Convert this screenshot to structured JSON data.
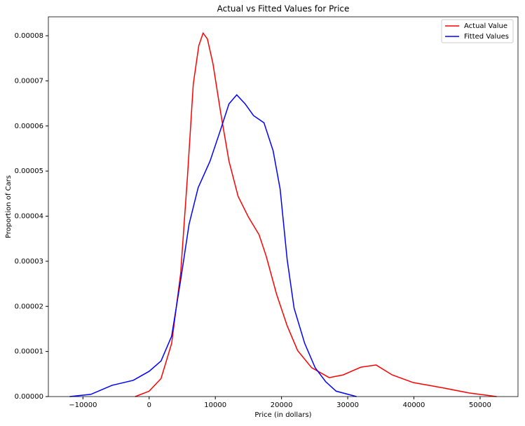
{
  "chart_data": {
    "type": "line",
    "title": "Actual vs Fitted Values for Price",
    "x_label": "Price (in dollars)",
    "y_label": "Proportion of Cars",
    "xlim": [
      -15225,
      55725
    ],
    "xticks": [
      {
        "value": -10000,
        "label": "−10000"
      },
      0,
      10000,
      20000,
      30000,
      40000,
      50000
    ],
    "ylim": [
      0,
      8.42e-05
    ],
    "yticks": [
      {
        "value": 0,
        "label": "0.00000"
      },
      1e-05,
      2e-05,
      3e-05,
      4e-05,
      5e-05,
      6e-05,
      7e-05,
      8e-05
    ],
    "legend": "upper right",
    "series": [
      {
        "name": "Actual Value",
        "color": "#ff0000",
        "x": [
          -2100,
          0,
          1800,
          3400,
          4760,
          5800,
          6670,
          7500,
          8150,
          8800,
          9630,
          10800,
          12060,
          13440,
          15000,
          16600,
          17670,
          19250,
          20850,
          22430,
          24550,
          27200,
          29300,
          31960,
          34290,
          36720,
          39900,
          44130,
          48360,
          52500
        ],
        "values": [
          0,
          1.2e-06,
          4e-06,
          1.18e-05,
          2.73e-05,
          4.9e-05,
          6.93e-05,
          7.78e-05,
          8.06e-05,
          7.93e-05,
          7.39e-05,
          6.3e-05,
          5.22e-05,
          4.44e-05,
          3.98e-05,
          3.59e-05,
          3.12e-05,
          2.27e-05,
          1.57e-05,
          1.02e-05,
          6.4e-06,
          4.2e-06,
          4.8e-06,
          6.5e-06,
          7e-06,
          4.8e-06,
          3.1e-06,
          2e-06,
          8e-07,
          0
        ]
      },
      {
        "name": "Fitted Values",
        "color": "#0000ff",
        "x": [
          -12000,
          -8800,
          -5600,
          -2400,
          0,
          1800,
          3400,
          4760,
          6030,
          7400,
          9200,
          10800,
          12060,
          13230,
          14500,
          15770,
          17350,
          18730,
          19790,
          20850,
          21900,
          23500,
          25080,
          26670,
          28250,
          31320
        ],
        "values": [
          0,
          5e-07,
          2.5e-06,
          3.6e-06,
          5.6e-06,
          7.9e-06,
          1.34e-05,
          2.58e-05,
          3.82e-05,
          4.63e-05,
          5.22e-05,
          5.92e-05,
          6.49e-05,
          6.69e-05,
          6.49e-05,
          6.23e-05,
          6.07e-05,
          5.45e-05,
          4.6e-05,
          3.04e-05,
          1.96e-05,
          1.18e-05,
          6.4e-06,
          3.3e-06,
          1.2e-06,
          0
        ]
      }
    ]
  }
}
